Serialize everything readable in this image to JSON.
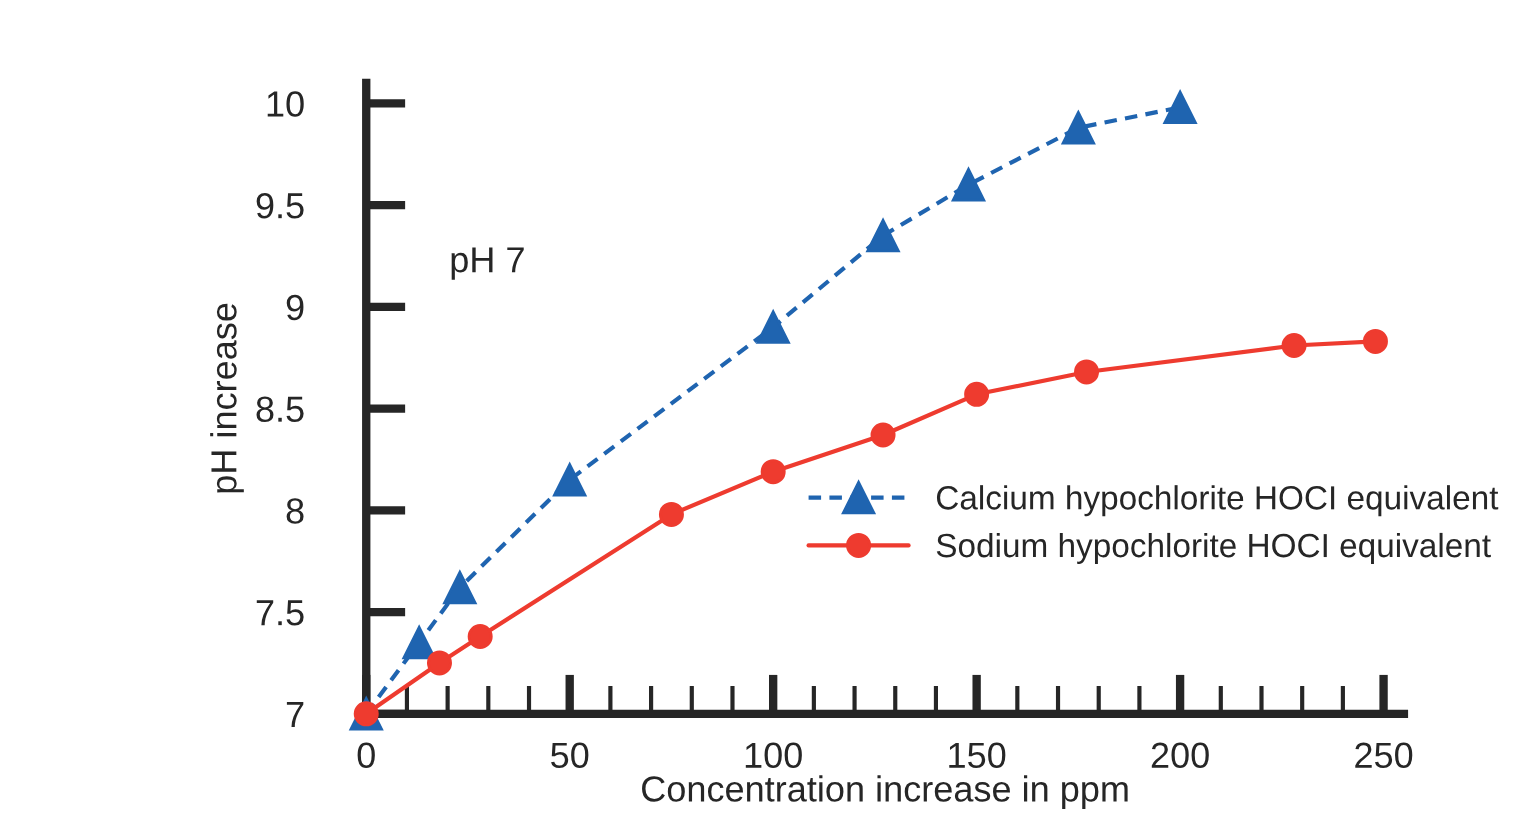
{
  "chart_data": {
    "type": "line",
    "xlabel": "Concentration increase in ppm",
    "ylabel": "pH increase",
    "annotations": [
      "pH 7"
    ],
    "xlim": [
      0,
      255
    ],
    "ylim": [
      7,
      10.1
    ],
    "xticks": [
      0,
      50,
      100,
      150,
      200,
      250
    ],
    "yticks": [
      7,
      7.5,
      8,
      8.5,
      9,
      9.5,
      10
    ],
    "grid": false,
    "legend": "right",
    "series": [
      {
        "name": "Calcium hypochlorite HOCI equivalent",
        "color": "#1f64b0",
        "marker": "triangle",
        "line_style": "dashed",
        "x": [
          0,
          13,
          23,
          50,
          100,
          127,
          148,
          175,
          200
        ],
        "values": [
          7,
          7.35,
          7.62,
          8.15,
          8.9,
          9.35,
          9.6,
          9.88,
          9.98
        ]
      },
      {
        "name": "Sodium hypochlorite HOCI equivalent",
        "color": "#ee3b2f",
        "marker": "circle",
        "line_style": "solid",
        "x": [
          0,
          18,
          28,
          75,
          100,
          127,
          150,
          177,
          228,
          248
        ],
        "values": [
          7,
          7.25,
          7.38,
          7.98,
          8.19,
          8.37,
          8.57,
          8.68,
          8.81,
          8.83
        ]
      }
    ]
  }
}
